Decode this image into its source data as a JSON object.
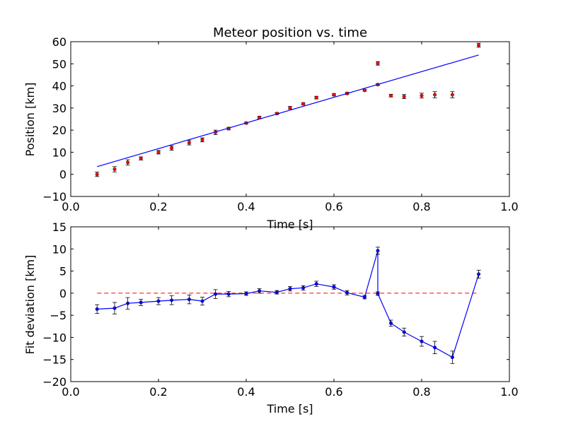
{
  "chart_data": [
    {
      "type": "scatter",
      "title": "Meteor position vs. time",
      "xlabel": "Time [s]",
      "ylabel": "Position [km]",
      "xlim": [
        0.0,
        1.0
      ],
      "ylim": [
        -10,
        60
      ],
      "xticks": [
        "0.0",
        "0.2",
        "0.4",
        "0.6",
        "0.8",
        "1.0"
      ],
      "yticks": [
        "−10",
        "0",
        "10",
        "20",
        "30",
        "40",
        "50",
        "60"
      ],
      "grid": false,
      "series": [
        {
          "kind": "points-with-errorbars",
          "color": "#ff0000",
          "points": [
            {
              "x": 0.06,
              "y": 0.0,
              "err": 1.0
            },
            {
              "x": 0.1,
              "y": 2.3,
              "err": 1.2
            },
            {
              "x": 0.13,
              "y": 5.4,
              "err": 1.2
            },
            {
              "x": 0.16,
              "y": 7.2,
              "err": 0.7
            },
            {
              "x": 0.2,
              "y": 10.0,
              "err": 0.8
            },
            {
              "x": 0.23,
              "y": 11.9,
              "err": 1.0
            },
            {
              "x": 0.27,
              "y": 14.3,
              "err": 1.0
            },
            {
              "x": 0.3,
              "y": 15.6,
              "err": 0.9
            },
            {
              "x": 0.33,
              "y": 19.0,
              "err": 1.0
            },
            {
              "x": 0.36,
              "y": 20.7,
              "err": 0.6
            },
            {
              "x": 0.4,
              "y": 23.2,
              "err": 0.4
            },
            {
              "x": 0.43,
              "y": 25.7,
              "err": 0.6
            },
            {
              "x": 0.47,
              "y": 27.5,
              "err": 0.4
            },
            {
              "x": 0.5,
              "y": 30.1,
              "err": 0.6
            },
            {
              "x": 0.53,
              "y": 31.9,
              "err": 0.5
            },
            {
              "x": 0.56,
              "y": 34.7,
              "err": 0.6
            },
            {
              "x": 0.6,
              "y": 36.0,
              "err": 0.5
            },
            {
              "x": 0.63,
              "y": 36.6,
              "err": 0.5
            },
            {
              "x": 0.67,
              "y": 38.0,
              "err": 0.4
            },
            {
              "x": 0.7,
              "y": 50.2,
              "err": 0.8
            },
            {
              "x": 0.7,
              "y": 40.6,
              "err": 0.4
            },
            {
              "x": 0.73,
              "y": 35.6,
              "err": 0.6
            },
            {
              "x": 0.76,
              "y": 35.2,
              "err": 0.9
            },
            {
              "x": 0.8,
              "y": 35.6,
              "err": 1.1
            },
            {
              "x": 0.83,
              "y": 36.0,
              "err": 1.4
            },
            {
              "x": 0.87,
              "y": 36.0,
              "err": 1.4
            },
            {
              "x": 0.93,
              "y": 58.4,
              "err": 0.9
            }
          ]
        },
        {
          "kind": "line",
          "color": "#0000ff",
          "points": [
            {
              "x": 0.06,
              "y": 3.5
            },
            {
              "x": 0.93,
              "y": 54.0
            }
          ]
        }
      ]
    },
    {
      "type": "line",
      "title": "",
      "xlabel": "Time [s]",
      "ylabel": "Fit deviation [km]",
      "xlim": [
        0.0,
        1.0
      ],
      "ylim": [
        -20,
        15
      ],
      "xticks": [
        "0.0",
        "0.2",
        "0.4",
        "0.6",
        "0.8",
        "1.0"
      ],
      "yticks": [
        "−20",
        "−15",
        "−10",
        "−5",
        "0",
        "5",
        "10",
        "15"
      ],
      "grid": false,
      "reference_line": {
        "y": 0,
        "color": "#ff0000",
        "style": "dashed",
        "x_range": [
          0.06,
          0.93
        ]
      },
      "series": [
        {
          "kind": "line-with-errorbars",
          "color": "#0000ff",
          "points": [
            {
              "x": 0.06,
              "y": -3.6,
              "err": 1.0
            },
            {
              "x": 0.1,
              "y": -3.4,
              "err": 1.3
            },
            {
              "x": 0.13,
              "y": -2.3,
              "err": 1.3
            },
            {
              "x": 0.16,
              "y": -2.1,
              "err": 0.7
            },
            {
              "x": 0.2,
              "y": -1.8,
              "err": 0.8
            },
            {
              "x": 0.23,
              "y": -1.6,
              "err": 1.0
            },
            {
              "x": 0.27,
              "y": -1.4,
              "err": 1.0
            },
            {
              "x": 0.3,
              "y": -1.8,
              "err": 0.9
            },
            {
              "x": 0.33,
              "y": -0.2,
              "err": 1.0
            },
            {
              "x": 0.36,
              "y": -0.2,
              "err": 0.6
            },
            {
              "x": 0.4,
              "y": -0.1,
              "err": 0.4
            },
            {
              "x": 0.43,
              "y": 0.5,
              "err": 0.5
            },
            {
              "x": 0.47,
              "y": 0.2,
              "err": 0.4
            },
            {
              "x": 0.5,
              "y": 1.0,
              "err": 0.5
            },
            {
              "x": 0.53,
              "y": 1.2,
              "err": 0.5
            },
            {
              "x": 0.56,
              "y": 2.1,
              "err": 0.6
            },
            {
              "x": 0.6,
              "y": 1.4,
              "err": 0.5
            },
            {
              "x": 0.63,
              "y": 0.1,
              "err": 0.5
            },
            {
              "x": 0.67,
              "y": -0.9,
              "err": 0.4
            },
            {
              "x": 0.7,
              "y": 9.6,
              "err": 0.8
            },
            {
              "x": 0.7,
              "y": -0.1,
              "err": 0.4
            },
            {
              "x": 0.73,
              "y": -6.8,
              "err": 0.7
            },
            {
              "x": 0.76,
              "y": -8.8,
              "err": 0.9
            },
            {
              "x": 0.8,
              "y": -10.9,
              "err": 1.1
            },
            {
              "x": 0.83,
              "y": -12.3,
              "err": 1.4
            },
            {
              "x": 0.87,
              "y": -14.5,
              "err": 1.4
            },
            {
              "x": 0.93,
              "y": 4.3,
              "err": 0.9
            }
          ]
        }
      ]
    }
  ]
}
